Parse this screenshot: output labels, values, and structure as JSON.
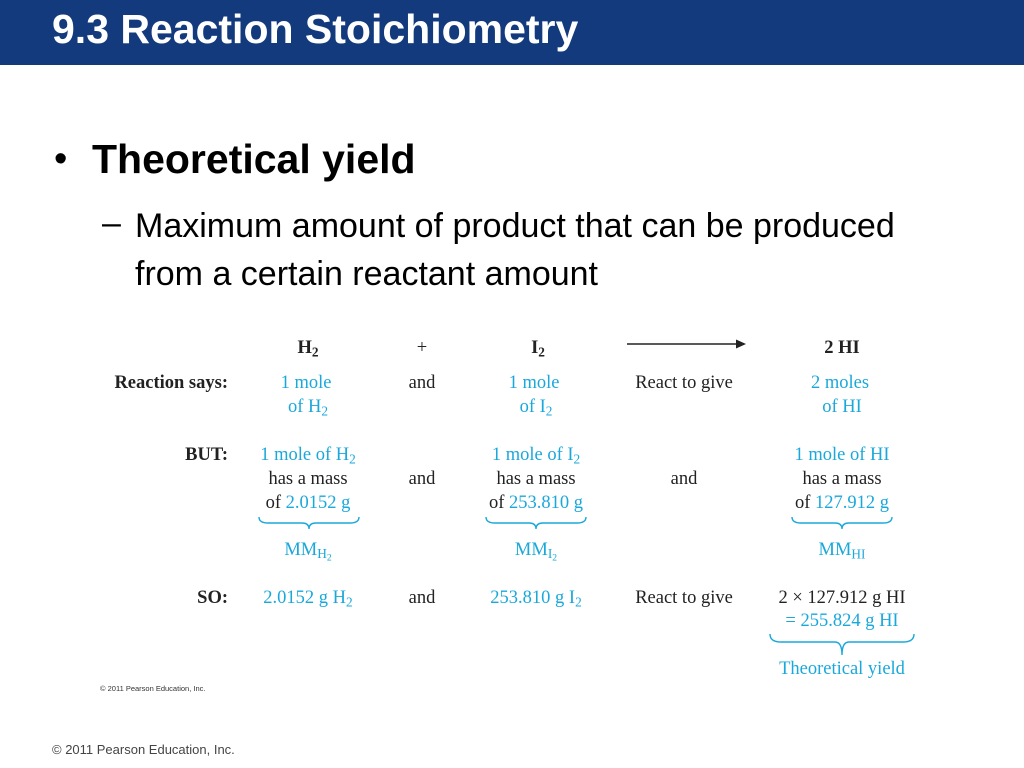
{
  "slide": {
    "title": "9.3 Reaction Stoichiometry",
    "bullet": "Theoretical yield",
    "sub_bullet": "Maximum amount of product that can be produced from a certain reactant amount",
    "footer": "© 2011 Pearson Education, Inc."
  },
  "figure": {
    "header": {
      "h2": "H",
      "h2_sub": "2",
      "plus": "+",
      "i2": "I",
      "i2_sub": "2",
      "product": "2 HI"
    },
    "rows": {
      "reaction": {
        "label": "Reaction says:",
        "h2_line1": "1 mole",
        "h2_line2": "of H",
        "h2_line2_sub": "2",
        "and": "and",
        "i2_line1": "1 mole",
        "i2_line2": "of I",
        "i2_line2_sub": "2",
        "verb": "React to give",
        "hi_line1": "2 moles",
        "hi_line2": "of HI"
      },
      "but": {
        "label": "BUT:",
        "h2_line1": "1 mole of H",
        "h2_line1_sub": "2",
        "h2_line2": "has a mass",
        "h2_line3_pre": "of ",
        "h2_line3_val": "2.0152 g",
        "h2_mm": "MM",
        "h2_mm_sub": "H",
        "h2_mm_subsub": "2",
        "and1": "and",
        "i2_line1": "1 mole of I",
        "i2_line1_sub": "2",
        "i2_line2": "has a mass",
        "i2_line3_pre": "of ",
        "i2_line3_val": "253.810 g",
        "i2_mm": "MM",
        "i2_mm_sub": "I",
        "i2_mm_subsub": "2",
        "and2": "and",
        "hi_line1": "1 mole of HI",
        "hi_line2": "has a mass",
        "hi_line3_pre": "of ",
        "hi_line3_val": "127.912 g",
        "hi_mm": "MM",
        "hi_mm_sub": "HI"
      },
      "so": {
        "label": "SO:",
        "h2_val": "2.0152 g H",
        "h2_val_sub": "2",
        "and": "and",
        "i2_val": "253.810 g I",
        "i2_val_sub": "2",
        "verb": "React to give",
        "hi_line1": "2 × 127.912 g HI",
        "hi_line2": "= 255.824 g HI",
        "hi_line3": "Theoretical yield"
      }
    },
    "credit": "© 2011 Pearson Education, Inc.",
    "colors": {
      "accent": "#1aa8db",
      "title_bar": "#133a7c"
    }
  }
}
